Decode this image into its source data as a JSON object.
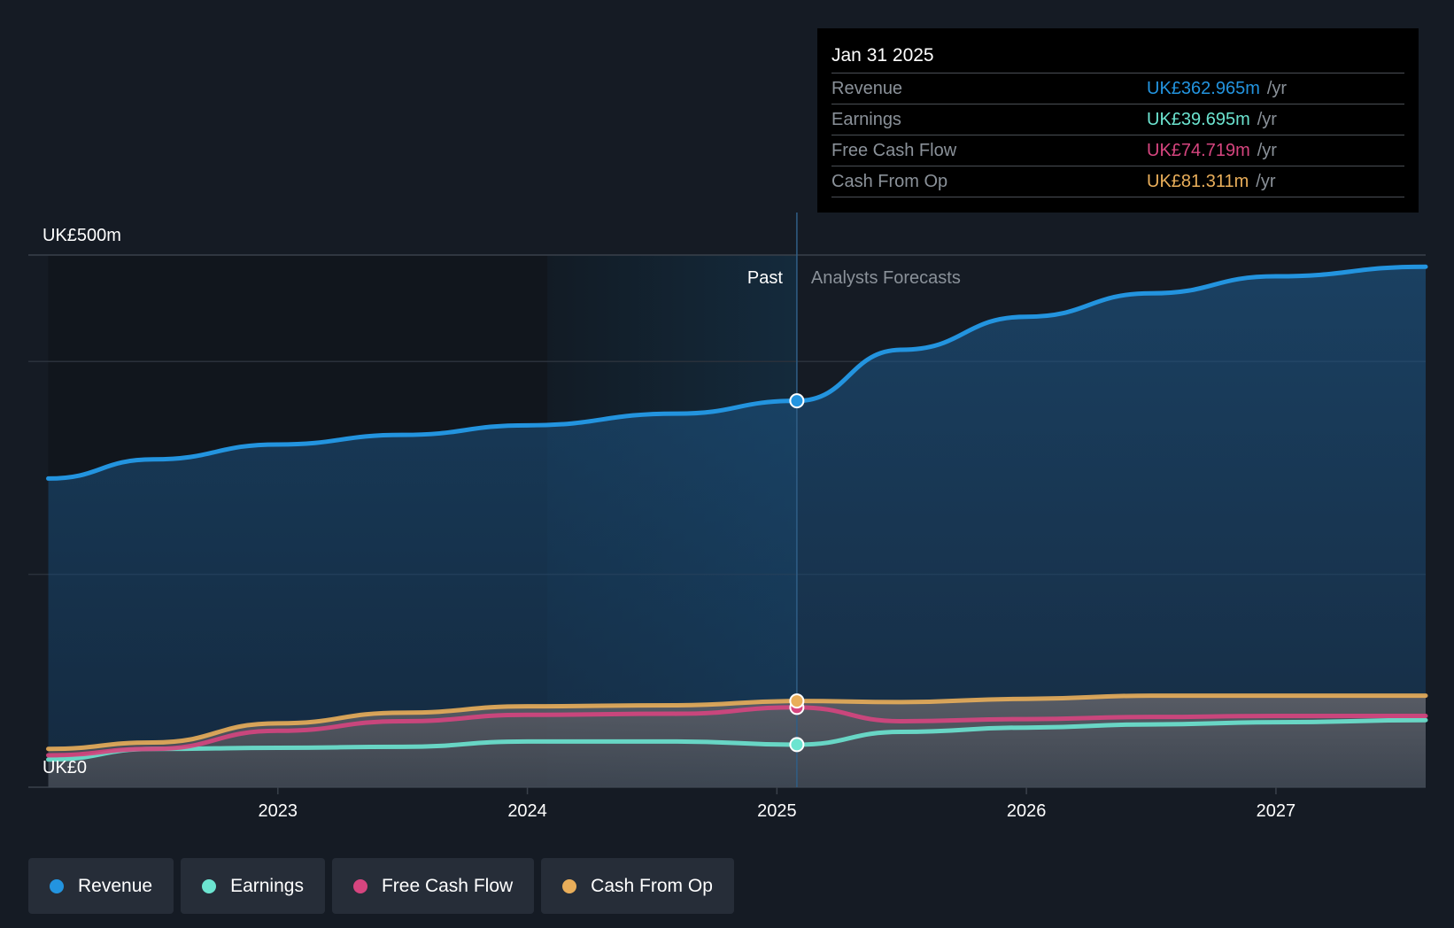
{
  "colors": {
    "revenue": "#2394df",
    "earnings": "#6ce4d0",
    "free_cash_flow": "#d6457f",
    "cash_from_op": "#e9ae5a",
    "background": "#151b24"
  },
  "tooltip": {
    "date": "Jan 31 2025",
    "unit": "/yr",
    "rows": [
      {
        "label": "Revenue",
        "value": "UK£362.965m"
      },
      {
        "label": "Earnings",
        "value": "UK£39.695m"
      },
      {
        "label": "Free Cash Flow",
        "value": "UK£74.719m"
      },
      {
        "label": "Cash From Op",
        "value": "UK£81.311m"
      }
    ]
  },
  "zones": {
    "past": "Past",
    "forecast": "Analysts Forecasts"
  },
  "legend": [
    {
      "label": "Revenue",
      "color": "#2394df"
    },
    {
      "label": "Earnings",
      "color": "#6ce4d0"
    },
    {
      "label": "Free Cash Flow",
      "color": "#d6457f"
    },
    {
      "label": "Cash From Op",
      "color": "#e9ae5a"
    }
  ],
  "chart_data": {
    "type": "area",
    "title": "",
    "ylabel": "",
    "xlabel": "",
    "ylim": [
      0,
      500
    ],
    "xlim": [
      2022.0,
      2027.6
    ],
    "y_tick_labels": [
      "UK£0",
      "UK£500m"
    ],
    "x_ticks": [
      2023,
      2024,
      2025,
      2026,
      2027
    ],
    "x_tick_labels": [
      "2023",
      "2024",
      "2025",
      "2026",
      "2027"
    ],
    "past_end": 2025.08,
    "highlight_start": 2024.08,
    "series": [
      {
        "name": "Revenue",
        "x": [
          2022.08,
          2022.5,
          2023.0,
          2023.5,
          2024.0,
          2024.6,
          2025.08,
          2025.5,
          2026.0,
          2026.5,
          2027.0,
          2027.6
        ],
        "values": [
          290,
          308,
          322,
          331,
          340,
          351,
          363,
          411,
          442,
          464,
          480,
          489
        ]
      },
      {
        "name": "Earnings",
        "x": [
          2022.08,
          2022.5,
          2023.0,
          2023.5,
          2024.0,
          2024.6,
          2025.08,
          2025.5,
          2026.0,
          2026.5,
          2027.0,
          2027.6
        ],
        "values": [
          26,
          36,
          37,
          38,
          43,
          43,
          40,
          52,
          56,
          59,
          61,
          63
        ]
      },
      {
        "name": "Free Cash Flow",
        "x": [
          2022.08,
          2022.5,
          2023.0,
          2023.5,
          2024.0,
          2024.6,
          2025.08,
          2025.5,
          2026.0,
          2026.5,
          2027.0,
          2027.6
        ],
        "values": [
          30,
          36,
          53,
          62,
          68,
          69,
          75,
          62,
          64,
          66,
          67,
          67
        ]
      },
      {
        "name": "Cash From Op",
        "x": [
          2022.08,
          2022.5,
          2023.0,
          2023.5,
          2024.0,
          2024.6,
          2025.08,
          2025.5,
          2026.0,
          2026.5,
          2027.0,
          2027.6
        ],
        "values": [
          36,
          42,
          60,
          70,
          76,
          77,
          81,
          80,
          83,
          86,
          86,
          86
        ]
      }
    ]
  }
}
